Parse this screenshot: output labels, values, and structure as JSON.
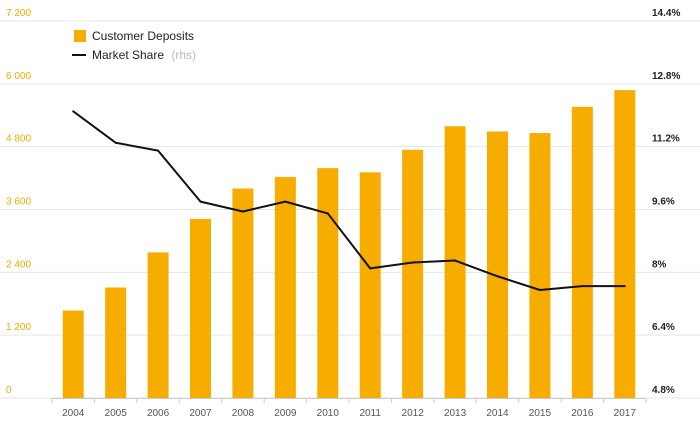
{
  "chart_data": {
    "type": "bar+line",
    "categories": [
      "2004",
      "2005",
      "2006",
      "2007",
      "2008",
      "2009",
      "2010",
      "2011",
      "2012",
      "2013",
      "2014",
      "2015",
      "2016",
      "2017"
    ],
    "series": [
      {
        "name": "Customer Deposits",
        "axis": "left",
        "kind": "bar",
        "values": [
          1670,
          2110,
          2780,
          3420,
          4000,
          4220,
          4390,
          4310,
          4740,
          5190,
          5090,
          5060,
          5560,
          5880
        ]
      },
      {
        "name": "Market Share",
        "axis": "right",
        "kind": "line",
        "values": [
          12.1,
          11.3,
          11.1,
          9.8,
          9.55,
          9.8,
          9.5,
          8.1,
          8.25,
          8.3,
          7.9,
          7.55,
          7.65,
          7.65
        ]
      }
    ],
    "legend": {
      "bar_label": "Customer Deposits",
      "line_label": "Market Share",
      "line_suffix": "(rhs)"
    },
    "y_left": {
      "ylim": [
        0,
        7200
      ],
      "ticks": [
        "0",
        "1 200",
        "2 400",
        "3 600",
        "4 800",
        "6 000",
        "7 200"
      ]
    },
    "y_right": {
      "ylim": [
        4.8,
        14.4
      ],
      "ticks": [
        "4.8%",
        "6.4%",
        "8%",
        "9.6%",
        "11.2%",
        "12.8%",
        "14.4%"
      ]
    },
    "colors": {
      "bar": "#f7ad00",
      "line": "#111111",
      "grid": "#e6e6e6",
      "left_ticks": "#f0ab00"
    }
  }
}
